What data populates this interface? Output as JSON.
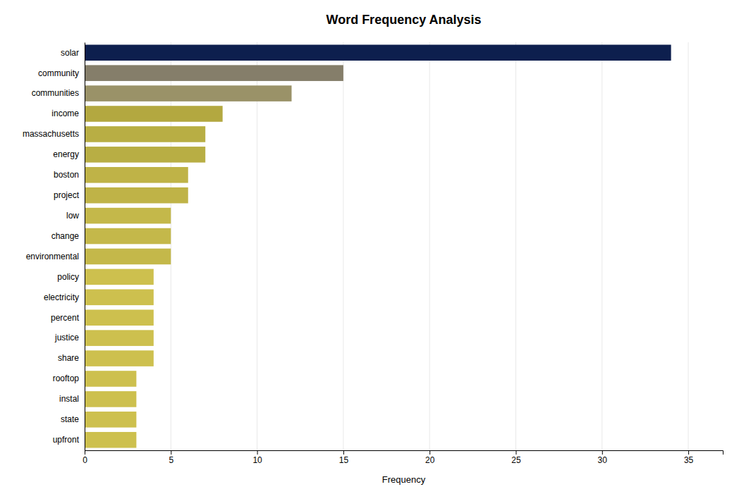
{
  "chart_data": {
    "type": "bar",
    "orientation": "horizontal",
    "title": "Word Frequency Analysis",
    "xlabel": "Frequency",
    "categories": [
      "upfront",
      "state",
      "instal",
      "rooftop",
      "share",
      "justice",
      "percent",
      "electricity",
      "policy",
      "environmental",
      "change",
      "low",
      "project",
      "boston",
      "energy",
      "massachusetts",
      "income",
      "communities",
      "community",
      "solar"
    ],
    "values": [
      3,
      3,
      3,
      3,
      4,
      4,
      4,
      4,
      4,
      5,
      5,
      5,
      6,
      6,
      7,
      7,
      8,
      12,
      15,
      34
    ],
    "colors": [
      "#cdc04e",
      "#cdc04e",
      "#cdc04e",
      "#cdc04e",
      "#cdc04e",
      "#cdc04e",
      "#cdc04e",
      "#cdc04e",
      "#cdc04e",
      "#c4b84a",
      "#c4b84a",
      "#c4b84a",
      "#bfb347",
      "#bfb347",
      "#b8ae44",
      "#b8ae44",
      "#b3a840",
      "#9a9268",
      "#857e6a",
      "#0d1f4e"
    ],
    "xlim": [
      0,
      37
    ],
    "xticks": [
      0,
      5,
      10,
      15,
      20,
      25,
      30,
      35
    ],
    "grid": true
  }
}
